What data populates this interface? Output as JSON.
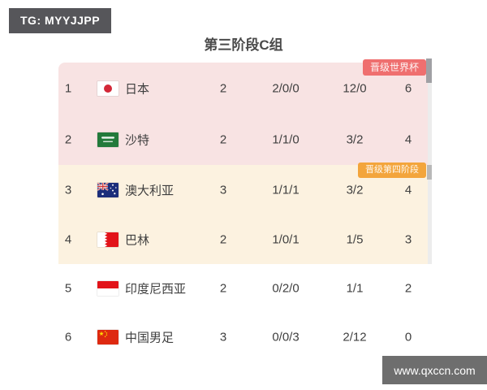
{
  "overlays": {
    "tg_badge": "TG: MYYJJPP",
    "watermark": "www.qxccn.com"
  },
  "title": "第三阶段C组",
  "badges": {
    "world_cup": {
      "label": "晋级世界杯",
      "color": "#ef6f6f"
    },
    "fourth_stage": {
      "label": "晋级第四阶段",
      "color": "#f3a53c"
    }
  },
  "colors": {
    "world_cup_zone_bg": "#f8e3e3",
    "fourth_stage_zone_bg": "#fcf2e0",
    "eliminated_zone_bg": "#ffffff",
    "tg_badge_bg": "#56565a",
    "watermark_bg": "#6e6e6e",
    "text": "#3f3f3f"
  },
  "standings": {
    "rows": [
      {
        "rank": "1",
        "team": "日本",
        "flag": "japan-flag",
        "played": "2",
        "record": "2/0/0",
        "goals": "12/0",
        "points": "6",
        "zone": "pink"
      },
      {
        "rank": "2",
        "team": "沙特",
        "flag": "saudi-flag",
        "played": "2",
        "record": "1/1/0",
        "goals": "3/2",
        "points": "4",
        "zone": "pink"
      },
      {
        "rank": "3",
        "team": "澳大利亚",
        "flag": "australia-flag",
        "played": "3",
        "record": "1/1/1",
        "goals": "3/2",
        "points": "4",
        "zone": "cream"
      },
      {
        "rank": "4",
        "team": "巴林",
        "flag": "bahrain-flag",
        "played": "2",
        "record": "1/0/1",
        "goals": "1/5",
        "points": "3",
        "zone": "cream"
      },
      {
        "rank": "5",
        "team": "印度尼西亚",
        "flag": "indonesia-flag",
        "played": "2",
        "record": "0/2/0",
        "goals": "1/1",
        "points": "2",
        "zone": "white"
      },
      {
        "rank": "6",
        "team": "中国男足",
        "flag": "china-flag",
        "played": "3",
        "record": "0/0/3",
        "goals": "2/12",
        "points": "0",
        "zone": "white"
      }
    ]
  }
}
